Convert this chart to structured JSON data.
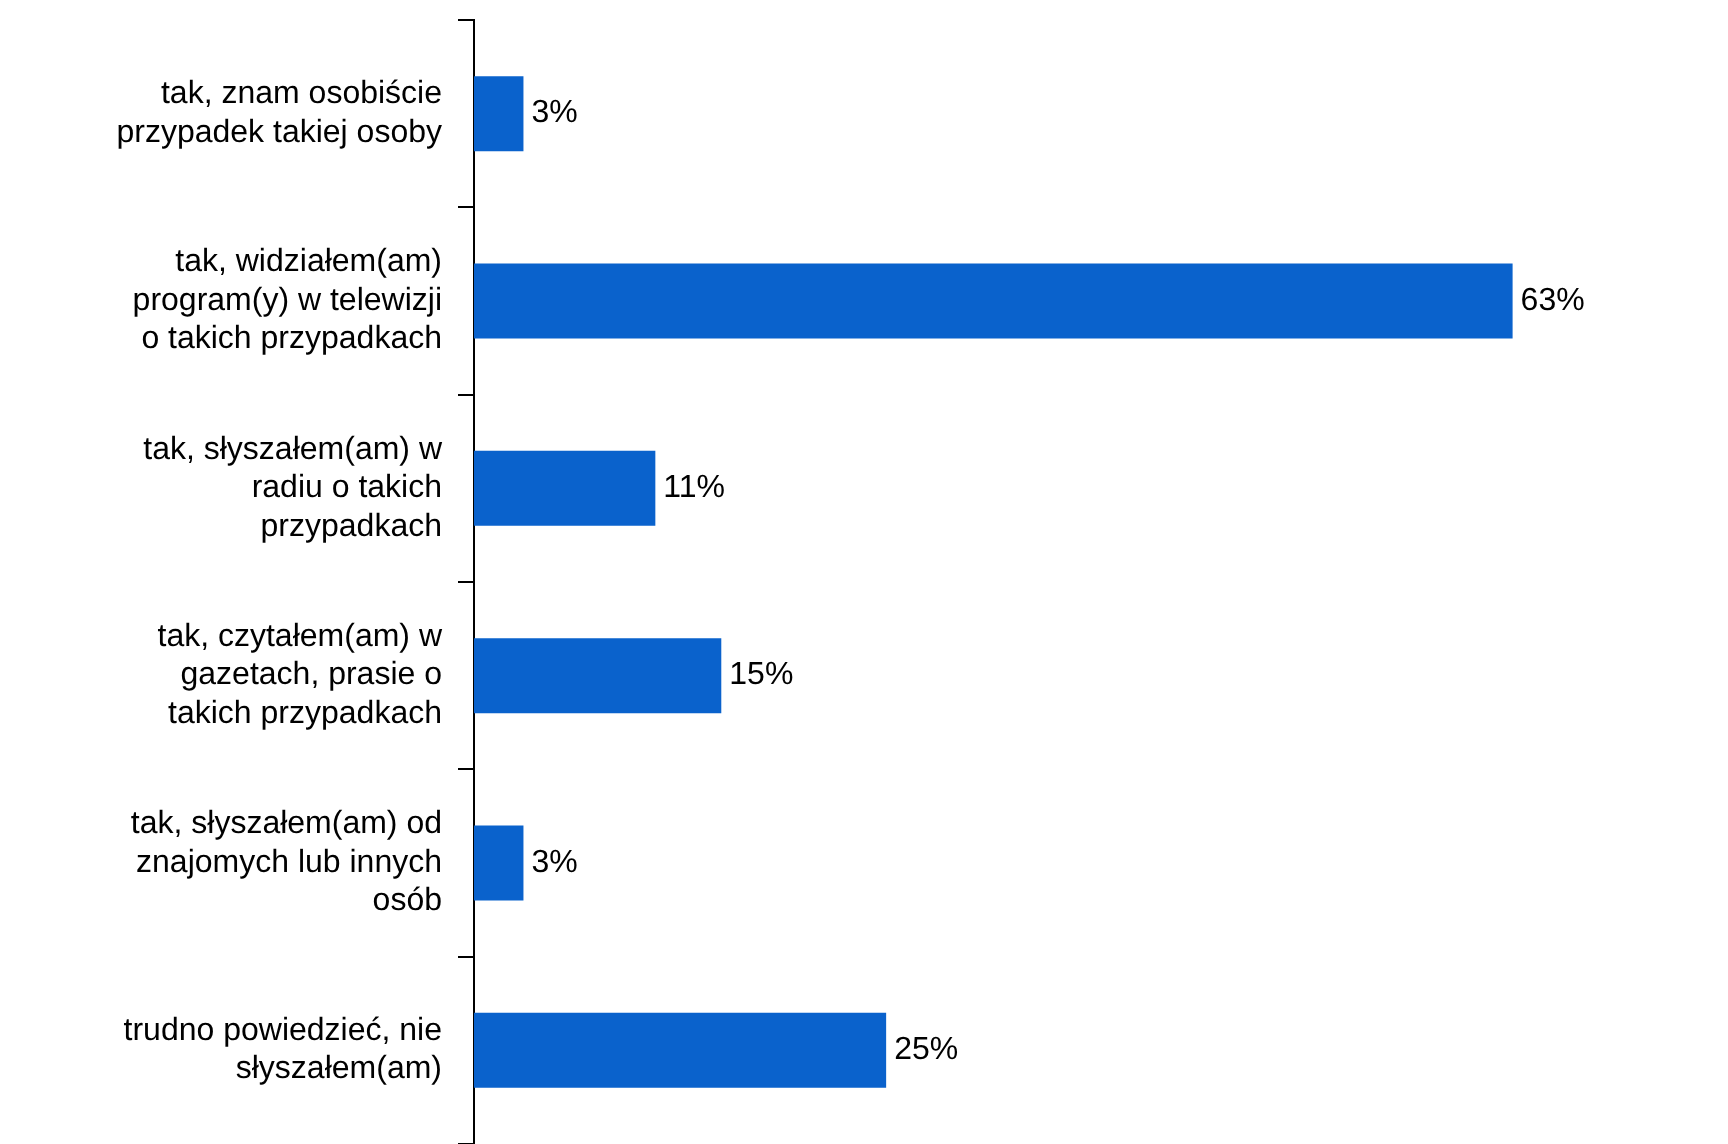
{
  "chart_data": {
    "type": "bar",
    "orientation": "horizontal",
    "categories": [
      "tak, znam osobiście przypadek takiej osoby",
      "tak, widziałem(am) program(y) w telewizji o takich przypadkach",
      "tak, słyszałem(am) w radiu o takich przypadkach",
      "tak, czytałem(am) w gazetach, prasie o takich przypadkach",
      "tak, słyszałem(am) od znajomych lub innych osób",
      "trudno powiedzieć, nie słyszałem(am)"
    ],
    "values": [
      3,
      63,
      11,
      15,
      3,
      25
    ],
    "value_labels": [
      "3%",
      "63%",
      "11%",
      "15%",
      "3%",
      "25%"
    ],
    "color": "#0a62cc",
    "legend": false
  }
}
